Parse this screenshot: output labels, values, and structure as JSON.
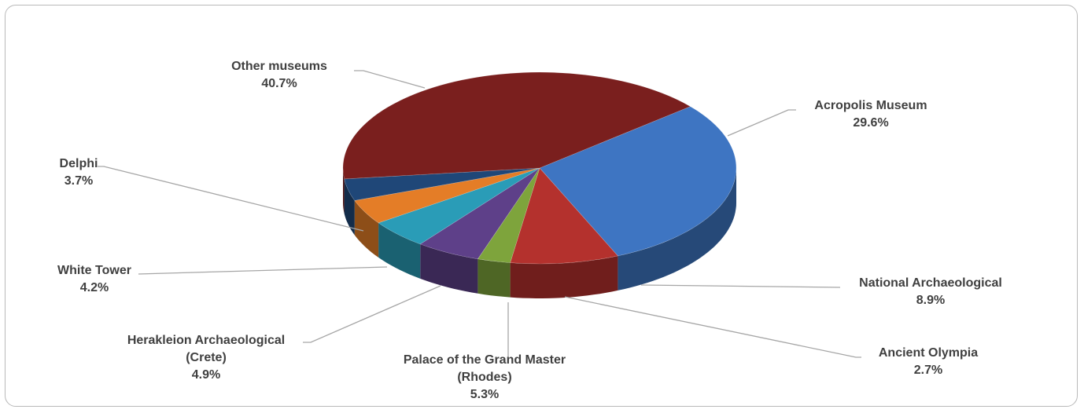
{
  "chart_data": {
    "type": "pie",
    "style": "3d",
    "slices": [
      {
        "label": "Acropolis Museum",
        "percent_label": "29.6%",
        "value": 29.6,
        "color": "#3e75c2"
      },
      {
        "label": "National Archaeological",
        "percent_label": "8.9%",
        "value": 8.9,
        "color": "#b4312d"
      },
      {
        "label": "Ancient Olympia",
        "percent_label": "2.7%",
        "value": 2.7,
        "color": "#7ea43c"
      },
      {
        "label": "Palace of the Grand Master",
        "label_line2": "(Rhodes)",
        "percent_label": "5.3%",
        "value": 5.3,
        "color": "#5e4089"
      },
      {
        "label": "Herakleion Archaeological",
        "label_line2": "(Crete)",
        "percent_label": "4.9%",
        "value": 4.9,
        "color": "#2a9cb7"
      },
      {
        "label": "White Tower",
        "percent_label": "4.2%",
        "value": 4.2,
        "color": "#e47d27"
      },
      {
        "label": "Delphi",
        "percent_label": "3.7%",
        "value": 3.7,
        "color": "#1f4778"
      },
      {
        "label": "Other museums",
        "percent_label": "40.7%",
        "value": 40.7,
        "color": "#7a1f1e"
      }
    ]
  }
}
